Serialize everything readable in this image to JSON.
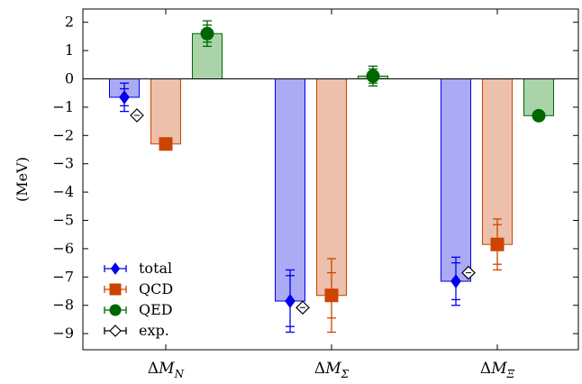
{
  "chart_data": {
    "type": "bar",
    "title": "",
    "xlabel": "",
    "ylabel": "(MeV)",
    "ylim": [
      -9.5,
      2.5
    ],
    "yticks": [
      2,
      1,
      0,
      -1,
      -2,
      -3,
      -4,
      -5,
      -6,
      -7,
      -8,
      -9
    ],
    "categories": [
      "ΔM_N",
      "ΔM_Σ",
      "ΔM_Ξ"
    ],
    "category_parts": [
      {
        "delta": "Δ",
        "M": "M",
        "sub": "N"
      },
      {
        "delta": "Δ",
        "M": "M",
        "sub": "Σ"
      },
      {
        "delta": "Δ",
        "M": "M",
        "sub": "Ξ"
      }
    ],
    "zero_line": true,
    "grid": false,
    "legend_position": "bottom-left",
    "series": [
      {
        "name": "total",
        "color": "#0000ee",
        "fill": "#aaaaf5",
        "marker": "diamond",
        "values": [
          -0.65,
          -7.85,
          -7.15
        ],
        "err_lo": [
          0.5,
          1.1,
          0.85
        ],
        "err_hi": [
          0.5,
          1.1,
          0.85
        ],
        "err_inner_lo": [
          0.3,
          0.9,
          0.65
        ],
        "err_inner_hi": [
          0.3,
          0.9,
          0.65
        ]
      },
      {
        "name": "QCD",
        "color": "#cc4400",
        "fill": "#ecc0aa",
        "marker": "square",
        "values": [
          -2.3,
          -7.65,
          -5.85
        ],
        "err_lo": [
          0.2,
          1.3,
          0.9
        ],
        "err_hi": [
          0.2,
          1.3,
          0.9
        ],
        "err_inner_lo": [
          0.15,
          0.8,
          0.7
        ],
        "err_inner_hi": [
          0.15,
          0.8,
          0.7
        ]
      },
      {
        "name": "QED",
        "color": "#006600",
        "fill": "#aad3aa",
        "marker": "circle",
        "values": [
          1.6,
          0.1,
          -1.3
        ],
        "err_lo": [
          0.45,
          0.35,
          0.05
        ],
        "err_hi": [
          0.45,
          0.35,
          0.05
        ],
        "err_inner_lo": [
          0.3,
          0.25,
          0.03
        ],
        "err_inner_hi": [
          0.3,
          0.25,
          0.03
        ]
      }
    ],
    "experiment": {
      "name": "exp.",
      "values": [
        -1.29,
        -8.08,
        -6.85
      ]
    }
  }
}
